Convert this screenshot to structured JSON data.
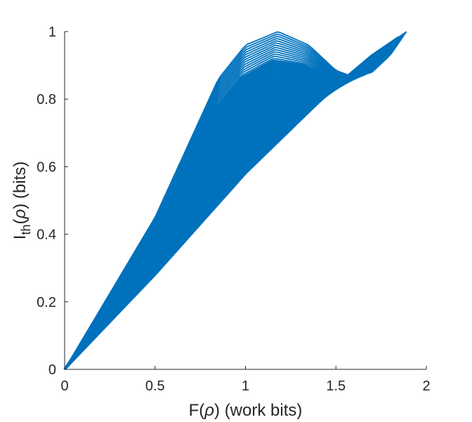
{
  "chart_data": {
    "type": "line",
    "xlabel_parts": [
      "F(",
      "ρ",
      ") (work bits)"
    ],
    "ylabel_parts": [
      "I",
      "th",
      "(",
      "ρ",
      ") (bits)"
    ],
    "xlim": [
      0,
      2
    ],
    "ylim": [
      0,
      1
    ],
    "xticks": [
      0,
      0.5,
      1,
      1.5,
      2
    ],
    "xtick_labels": [
      "0",
      "0.5",
      "1",
      "1.5",
      "2"
    ],
    "yticks": [
      0,
      0.2,
      0.4,
      0.6,
      0.8,
      1
    ],
    "ytick_labels": [
      "0",
      "0.2",
      "0.4",
      "0.6",
      "0.8",
      "1"
    ],
    "grid": false,
    "series_color": "#0072BD",
    "axis_color": "#262626",
    "curve_family": {
      "count": 60,
      "lower_envelope": {
        "x": [
          0,
          0.5,
          1,
          1.5,
          1.7
        ],
        "y": [
          0,
          0.28,
          0.58,
          0.84,
          0.93
        ]
      },
      "upper_envelope": {
        "x": [
          0,
          0.5,
          0.85,
          1.0,
          1.18,
          1.35,
          1.5,
          1.6,
          1.7,
          1.8,
          1.89
        ],
        "y": [
          0,
          0.45,
          0.86,
          0.96,
          1.0,
          0.96,
          0.885,
          0.865,
          0.88,
          0.93,
          1.0
        ]
      }
    }
  }
}
